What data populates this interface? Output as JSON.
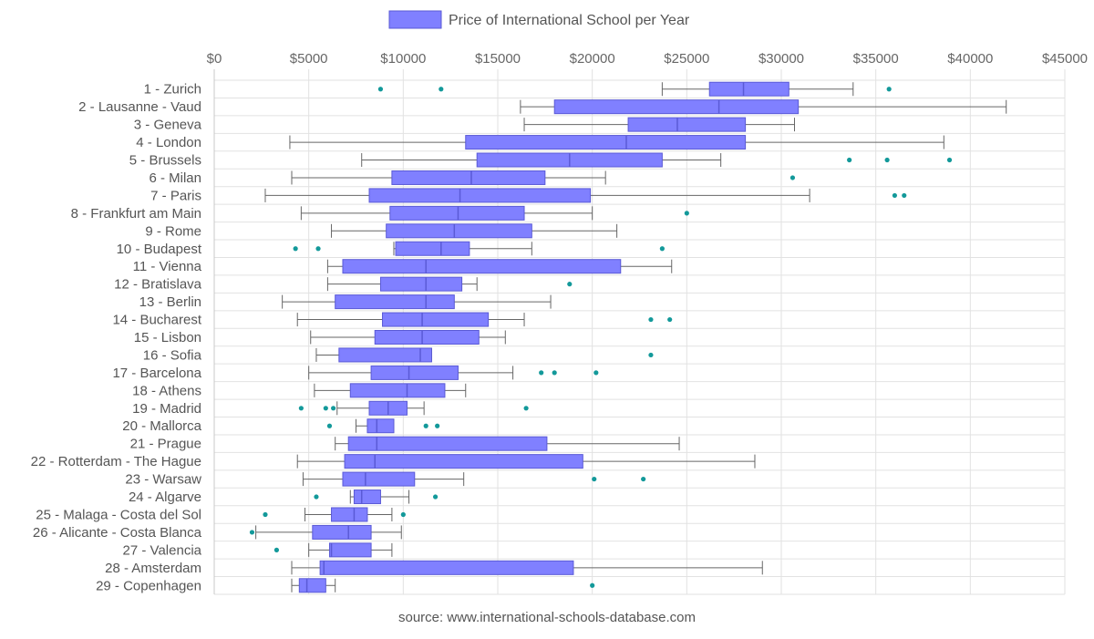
{
  "chart_data": {
    "type": "boxplot",
    "orientation": "horizontal",
    "legend": {
      "label": "Price of International School per Year",
      "position": "top-center"
    },
    "source": "source: www.international-schools-database.com",
    "x_axis": {
      "position": "top",
      "range": [
        0,
        45000
      ],
      "ticks": [
        "$0",
        "$5000",
        "$10000",
        "$15000",
        "$20000",
        "$25000",
        "$30000",
        "$35000",
        "$40000",
        "$45000"
      ]
    },
    "grid": true,
    "colors": {
      "box_fill": "#8080ff",
      "box_stroke": "#5a5ad6",
      "whisker": "#666666",
      "outlier": "#13999a",
      "grid": "#e2e2e2"
    },
    "series": [
      {
        "label": "1 - Zurich",
        "min": 23700,
        "q1": 26200,
        "median": 28000,
        "q3": 30400,
        "max": 33800,
        "outliers": [
          8800,
          12000,
          35700
        ]
      },
      {
        "label": "2 - Lausanne - Vaud",
        "min": 16200,
        "q1": 18000,
        "median": 26700,
        "q3": 30900,
        "max": 41900,
        "outliers": []
      },
      {
        "label": "3 - Geneva",
        "min": 16400,
        "q1": 21900,
        "median": 24500,
        "q3": 28100,
        "max": 30700,
        "outliers": []
      },
      {
        "label": "4 - London",
        "min": 4000,
        "q1": 13300,
        "median": 21800,
        "q3": 28100,
        "max": 38600,
        "outliers": []
      },
      {
        "label": "5 - Brussels",
        "min": 7800,
        "q1": 13900,
        "median": 18800,
        "q3": 23700,
        "max": 26800,
        "outliers": [
          33600,
          35600,
          38900
        ]
      },
      {
        "label": "6 - Milan",
        "min": 4100,
        "q1": 9400,
        "median": 13600,
        "q3": 17500,
        "max": 20700,
        "outliers": [
          30600
        ]
      },
      {
        "label": "7 - Paris",
        "min": 2700,
        "q1": 8200,
        "median": 13000,
        "q3": 19900,
        "max": 31500,
        "outliers": [
          36000,
          36500
        ]
      },
      {
        "label": "8 - Frankfurt am Main",
        "min": 4600,
        "q1": 9300,
        "median": 12900,
        "q3": 16400,
        "max": 20000,
        "outliers": [
          25000
        ]
      },
      {
        "label": "9 - Rome",
        "min": 6200,
        "q1": 9100,
        "median": 12700,
        "q3": 16800,
        "max": 21300,
        "outliers": []
      },
      {
        "label": "10 - Budapest",
        "min": 9500,
        "q1": 9600,
        "median": 12000,
        "q3": 13500,
        "max": 16800,
        "outliers": [
          4300,
          5500,
          23700
        ]
      },
      {
        "label": "11 - Vienna",
        "min": 6000,
        "q1": 6800,
        "median": 11200,
        "q3": 21500,
        "max": 24200,
        "outliers": []
      },
      {
        "label": "12 - Bratislava",
        "min": 6000,
        "q1": 8800,
        "median": 11200,
        "q3": 13100,
        "max": 13900,
        "outliers": [
          18800
        ]
      },
      {
        "label": "13 - Berlin",
        "min": 3600,
        "q1": 6400,
        "median": 11200,
        "q3": 12700,
        "max": 17800,
        "outliers": []
      },
      {
        "label": "14 - Bucharest",
        "min": 4400,
        "q1": 8900,
        "median": 11000,
        "q3": 14500,
        "max": 16400,
        "outliers": [
          23100,
          24100
        ]
      },
      {
        "label": "15 - Lisbon",
        "min": 5100,
        "q1": 8500,
        "median": 11000,
        "q3": 14000,
        "max": 15400,
        "outliers": []
      },
      {
        "label": "16 - Sofia",
        "min": 5400,
        "q1": 6600,
        "median": 10900,
        "q3": 11500,
        "max": 11500,
        "outliers": [
          23100
        ]
      },
      {
        "label": "17 - Barcelona",
        "min": 5000,
        "q1": 8300,
        "median": 10300,
        "q3": 12900,
        "max": 15800,
        "outliers": [
          17300,
          18000,
          20200
        ]
      },
      {
        "label": "18 - Athens",
        "min": 5300,
        "q1": 7200,
        "median": 10200,
        "q3": 12200,
        "max": 13300,
        "outliers": []
      },
      {
        "label": "19 - Madrid",
        "min": 6500,
        "q1": 8200,
        "median": 9200,
        "q3": 10200,
        "max": 11100,
        "outliers": [
          4600,
          5900,
          6300,
          16500
        ]
      },
      {
        "label": "20 - Mallorca",
        "min": 7500,
        "q1": 8100,
        "median": 8600,
        "q3": 9500,
        "max": 9500,
        "outliers": [
          6100,
          11200,
          11800
        ]
      },
      {
        "label": "21 - Prague",
        "min": 6400,
        "q1": 7100,
        "median": 8600,
        "q3": 17600,
        "max": 24600,
        "outliers": []
      },
      {
        "label": "22 - Rotterdam - The Hague",
        "min": 4400,
        "q1": 6900,
        "median": 8500,
        "q3": 19500,
        "max": 28600,
        "outliers": []
      },
      {
        "label": "23 - Warsaw",
        "min": 4700,
        "q1": 6800,
        "median": 8000,
        "q3": 10600,
        "max": 13200,
        "outliers": [
          20100,
          22700
        ]
      },
      {
        "label": "24 - Algarve",
        "min": 7200,
        "q1": 7400,
        "median": 7800,
        "q3": 8800,
        "max": 10300,
        "outliers": [
          5400,
          11700
        ]
      },
      {
        "label": "25 - Malaga - Costa del Sol",
        "min": 4800,
        "q1": 6200,
        "median": 7400,
        "q3": 8100,
        "max": 9400,
        "outliers": [
          2700,
          10000
        ]
      },
      {
        "label": "26 - Alicante - Costa Blanca",
        "min": 2200,
        "q1": 5200,
        "median": 7100,
        "q3": 8300,
        "max": 9900,
        "outliers": [
          2000
        ]
      },
      {
        "label": "27 - Valencia",
        "min": 5000,
        "q1": 6100,
        "median": 6200,
        "q3": 8300,
        "max": 9400,
        "outliers": [
          3300
        ]
      },
      {
        "label": "28 - Amsterdam",
        "min": 4100,
        "q1": 5600,
        "median": 5800,
        "q3": 19000,
        "max": 29000,
        "outliers": []
      },
      {
        "label": "29 - Copenhagen",
        "min": 4100,
        "q1": 4500,
        "median": 4900,
        "q3": 5900,
        "max": 6400,
        "outliers": [
          20000
        ]
      }
    ]
  }
}
